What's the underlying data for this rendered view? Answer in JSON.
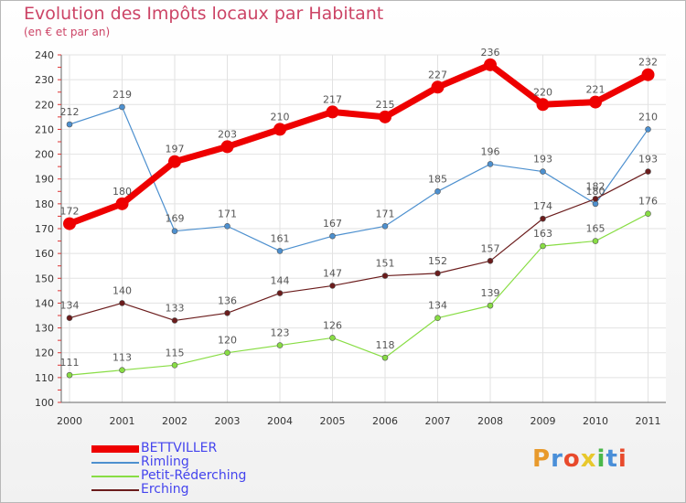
{
  "chart_data": {
    "type": "line",
    "title": "Evolution des Impôts locaux par Habitant",
    "subtitle": "(en € et par an)",
    "categories": [
      "2000",
      "2001",
      "2002",
      "2003",
      "2004",
      "2005",
      "2006",
      "2007",
      "2008",
      "2009",
      "2010",
      "2011"
    ],
    "ylim": [
      100,
      240
    ],
    "yticks": [
      100,
      110,
      120,
      130,
      140,
      150,
      160,
      170,
      180,
      190,
      200,
      210,
      220,
      230,
      240
    ],
    "grid": true,
    "legend_position": "bottom-left",
    "series": [
      {
        "name": "BETTVILLER",
        "color": "#ee0000",
        "values": [
          172,
          180,
          197,
          203,
          210,
          217,
          215,
          227,
          236,
          220,
          221,
          232
        ]
      },
      {
        "name": "Rimling",
        "color": "#4d90cf",
        "values": [
          212,
          219,
          169,
          171,
          161,
          167,
          171,
          185,
          196,
          193,
          180,
          210
        ]
      },
      {
        "name": "Petit-Réderching",
        "color": "#88dd44",
        "values": [
          111,
          113,
          115,
          120,
          123,
          126,
          118,
          134,
          139,
          163,
          165,
          176
        ]
      },
      {
        "name": "Erching",
        "color": "#6b1c1c",
        "values": [
          134,
          140,
          133,
          136,
          144,
          147,
          151,
          152,
          157,
          174,
          182,
          193
        ]
      }
    ]
  },
  "logo": {
    "text": "Proxiti",
    "colors": [
      "#e89a2c",
      "#4a8fd8",
      "#e84a2c",
      "#e8c82c",
      "#4ab84a",
      "#4a8fd8",
      "#e84a2c"
    ]
  }
}
